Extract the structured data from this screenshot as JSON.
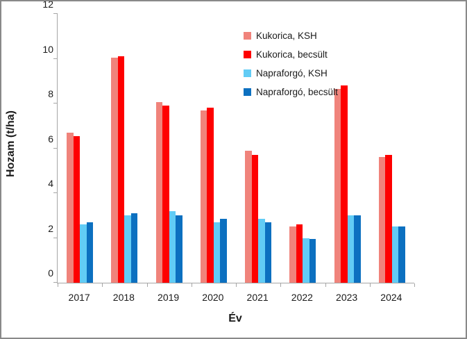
{
  "frame": {
    "background": "#ffffff",
    "border_color": "#898989",
    "axis_color": "#a6a6a6",
    "text_color": "#1a1a1a"
  },
  "chart_data": {
    "type": "bar",
    "title": "",
    "xlabel": "Év",
    "ylabel": "Hozam (t/ha)",
    "categories": [
      "2017",
      "2018",
      "2019",
      "2020",
      "2021",
      "2022",
      "2023",
      "2024"
    ],
    "series": [
      {
        "name": "Kukorica, KSH",
        "color": "#f0837b",
        "values": [
          6.7,
          10.05,
          8.05,
          7.7,
          5.9,
          2.5,
          8.65,
          5.6
        ]
      },
      {
        "name": "Kukorica, becsült",
        "color": "#fe0000",
        "values": [
          6.55,
          10.1,
          7.9,
          7.8,
          5.7,
          2.6,
          8.8,
          5.7
        ]
      },
      {
        "name": "Napraforgó, KSH",
        "color": "#62ccf5",
        "values": [
          2.6,
          3.0,
          3.2,
          2.7,
          2.85,
          2.0,
          3.0,
          2.5
        ]
      },
      {
        "name": "Napraforgó, becsült",
        "color": "#0c70c0",
        "values": [
          2.7,
          3.1,
          3.0,
          2.85,
          2.7,
          1.95,
          3.0,
          2.5
        ]
      }
    ],
    "ylim": [
      0,
      12
    ],
    "yticks": [
      0,
      2,
      4,
      6,
      8,
      10,
      12
    ],
    "grid": false,
    "legend_position": "inside-top-center",
    "bar_gap_in_group": 0
  }
}
